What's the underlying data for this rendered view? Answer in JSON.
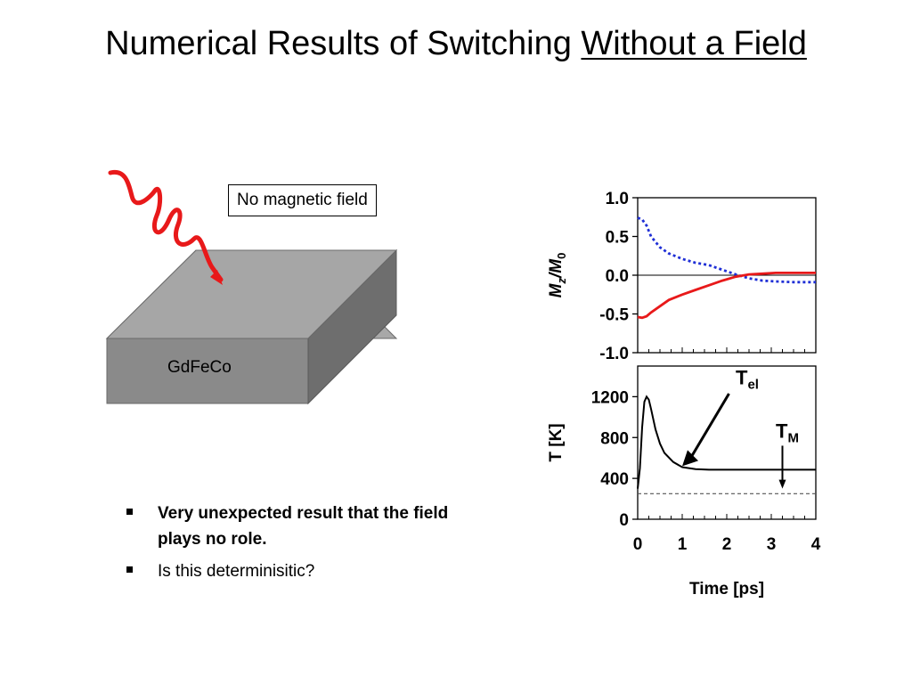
{
  "slide": {
    "title_plain": "Numerical Results of Switching ",
    "title_underlined": "Without a Field"
  },
  "illustration": {
    "material_label": "GdFeCo",
    "field_box_text": "No magnetic field",
    "laser_color": "#e8191a"
  },
  "bullets": [
    {
      "text": "Very unexpected result that the field plays no role.",
      "bold": true
    },
    {
      "text": "Is this determinisitic?",
      "bold": false
    }
  ],
  "chart_data": [
    {
      "type": "line",
      "ylabel_main": "M",
      "ylabel_sub": "z",
      "ylabel_mid": "/M",
      "ylabel_sub2": "0",
      "xlim": [
        0,
        4
      ],
      "ylim": [
        -1.0,
        1.0
      ],
      "yticks": [
        "1.0",
        "0.5",
        "0.0",
        "-0.5",
        "-1.0"
      ],
      "series": [
        {
          "style": "dotted",
          "color": "#1f2fd6",
          "x": [
            0,
            0.1,
            0.2,
            0.3,
            0.5,
            0.7,
            1.0,
            1.3,
            1.6,
            1.9,
            2.2,
            2.5,
            2.8,
            3.1,
            3.5,
            4.0
          ],
          "y": [
            0.74,
            0.72,
            0.64,
            0.5,
            0.36,
            0.28,
            0.21,
            0.16,
            0.13,
            0.07,
            0.01,
            -0.04,
            -0.07,
            -0.08,
            -0.09,
            -0.09
          ]
        },
        {
          "style": "solid",
          "color": "#e8191a",
          "x": [
            0,
            0.1,
            0.2,
            0.3,
            0.5,
            0.7,
            1.0,
            1.3,
            1.6,
            1.9,
            2.2,
            2.5,
            2.8,
            3.1,
            3.5,
            4.0
          ],
          "y": [
            -0.54,
            -0.55,
            -0.53,
            -0.48,
            -0.4,
            -0.32,
            -0.25,
            -0.19,
            -0.13,
            -0.07,
            -0.02,
            0.01,
            0.02,
            0.03,
            0.03,
            0.03
          ]
        }
      ]
    },
    {
      "type": "line",
      "ylabel": "T [K]",
      "xlabel": "Time [ps]",
      "xlim": [
        0,
        4
      ],
      "ylim": [
        0,
        1500
      ],
      "xticks": [
        "0",
        "1",
        "2",
        "3",
        "4"
      ],
      "yticks": [
        "1200",
        "800",
        "400",
        "0"
      ],
      "annotations": [
        {
          "main": "T",
          "sub": "el",
          "x": 2.2,
          "y": 1320
        },
        {
          "main": "T",
          "sub": "M",
          "x": 3.1,
          "y": 800
        }
      ],
      "series": [
        {
          "style": "solid",
          "color": "#000000",
          "x": [
            0,
            0.05,
            0.1,
            0.15,
            0.2,
            0.25,
            0.3,
            0.4,
            0.5,
            0.6,
            0.8,
            1.0,
            1.3,
            1.6,
            2.0,
            3.0,
            4.0
          ],
          "y": [
            300,
            500,
            900,
            1150,
            1200,
            1170,
            1080,
            880,
            740,
            650,
            560,
            510,
            490,
            485,
            485,
            485,
            485
          ]
        },
        {
          "style": "dashed",
          "color": "#555555",
          "x": [
            0,
            4.0
          ],
          "y": [
            250,
            250
          ]
        }
      ]
    }
  ]
}
